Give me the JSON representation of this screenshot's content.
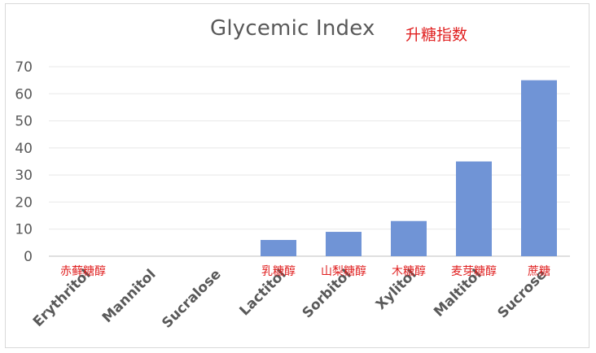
{
  "chart_data": {
    "type": "bar",
    "title": "Glycemic Index",
    "subtitle": "升糖指数",
    "xlabel": "",
    "ylabel": "",
    "categories": [
      "Erythritol",
      "Mannitol",
      "Sucralose",
      "Lactitol",
      "Sorbitol",
      "Xylitol",
      "Maltitol",
      "Sucrose"
    ],
    "category_labels_cn": [
      "赤藓糖醇",
      "",
      "",
      "乳糖醇",
      "山梨糖醇",
      "木糖醇",
      "麦芽糖醇",
      "蔗糖"
    ],
    "values": [
      0,
      0,
      0,
      6,
      9,
      13,
      35,
      65
    ],
    "ylim": [
      0,
      70
    ],
    "yticks": [
      0,
      10,
      20,
      30,
      40,
      50,
      60,
      70
    ],
    "grid": true,
    "legend": "none",
    "bar_color": "#7094d6",
    "grid_color": "#e8e8e8",
    "annotation_color": "#e02020"
  }
}
